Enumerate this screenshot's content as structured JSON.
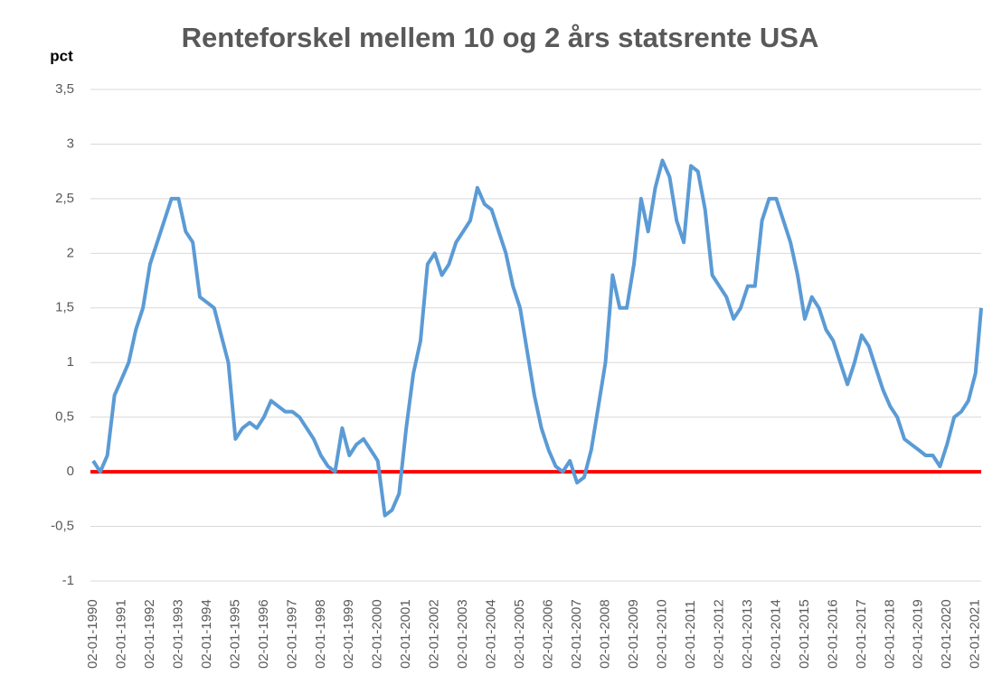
{
  "chart_data": {
    "type": "line",
    "title": "Renteforskel mellem 10 og 2 års statsrente USA",
    "y_label": "pct",
    "x": [
      1990.0,
      1990.25,
      1990.5,
      1990.75,
      1991.0,
      1991.25,
      1991.5,
      1991.75,
      1992.0,
      1992.25,
      1992.5,
      1992.75,
      1993.0,
      1993.25,
      1993.5,
      1993.75,
      1994.0,
      1994.25,
      1994.5,
      1994.75,
      1995.0,
      1995.25,
      1995.5,
      1995.75,
      1996.0,
      1996.25,
      1996.5,
      1996.75,
      1997.0,
      1997.25,
      1997.5,
      1997.75,
      1998.0,
      1998.25,
      1998.5,
      1998.75,
      1999.0,
      1999.25,
      1999.5,
      1999.75,
      2000.0,
      2000.25,
      2000.5,
      2000.75,
      2001.0,
      2001.25,
      2001.5,
      2001.75,
      2002.0,
      2002.25,
      2002.5,
      2002.75,
      2003.0,
      2003.25,
      2003.5,
      2003.75,
      2004.0,
      2004.25,
      2004.5,
      2004.75,
      2005.0,
      2005.25,
      2005.5,
      2005.75,
      2006.0,
      2006.25,
      2006.5,
      2006.75,
      2007.0,
      2007.25,
      2007.5,
      2007.75,
      2008.0,
      2008.25,
      2008.5,
      2008.75,
      2009.0,
      2009.25,
      2009.5,
      2009.75,
      2010.0,
      2010.25,
      2010.5,
      2010.75,
      2011.0,
      2011.25,
      2011.5,
      2011.75,
      2012.0,
      2012.25,
      2012.5,
      2012.75,
      2013.0,
      2013.25,
      2013.5,
      2013.75,
      2014.0,
      2014.25,
      2014.5,
      2014.75,
      2015.0,
      2015.25,
      2015.5,
      2015.75,
      2016.0,
      2016.25,
      2016.5,
      2016.75,
      2017.0,
      2017.25,
      2017.5,
      2017.75,
      2018.0,
      2018.25,
      2018.5,
      2018.75,
      2019.0,
      2019.25,
      2019.5,
      2019.75,
      2020.0,
      2020.25,
      2020.5,
      2020.75,
      2021.0,
      2021.1,
      2021.2
    ],
    "series": [
      {
        "name": "Renteforskel",
        "color": "#5b9bd5",
        "values": [
          0.1,
          0.0,
          0.15,
          0.7,
          0.85,
          1.0,
          1.3,
          1.5,
          1.9,
          2.1,
          2.3,
          2.5,
          2.5,
          2.2,
          2.1,
          1.6,
          1.55,
          1.5,
          1.25,
          1.0,
          0.3,
          0.4,
          0.45,
          0.4,
          0.5,
          0.65,
          0.6,
          0.55,
          0.55,
          0.5,
          0.4,
          0.3,
          0.15,
          0.05,
          0.0,
          0.4,
          0.15,
          0.25,
          0.3,
          0.2,
          0.1,
          -0.4,
          -0.35,
          -0.2,
          0.4,
          0.9,
          1.2,
          1.9,
          2.0,
          1.8,
          1.9,
          2.1,
          2.2,
          2.3,
          2.6,
          2.45,
          2.4,
          2.2,
          2.0,
          1.7,
          1.5,
          1.1,
          0.7,
          0.4,
          0.2,
          0.05,
          0.0,
          0.1,
          -0.1,
          -0.05,
          0.2,
          0.6,
          1.0,
          1.8,
          1.5,
          1.5,
          1.9,
          2.5,
          2.2,
          2.6,
          2.85,
          2.7,
          2.3,
          2.1,
          2.8,
          2.75,
          2.4,
          1.8,
          1.7,
          1.6,
          1.4,
          1.5,
          1.7,
          1.7,
          2.3,
          2.5,
          2.5,
          2.3,
          2.1,
          1.8,
          1.4,
          1.6,
          1.5,
          1.3,
          1.2,
          1.0,
          0.8,
          1.0,
          1.25,
          1.15,
          0.95,
          0.75,
          0.6,
          0.5,
          0.3,
          0.25,
          0.2,
          0.15,
          0.15,
          0.05,
          0.25,
          0.5,
          0.55,
          0.65,
          0.9,
          1.2,
          1.5
        ]
      }
    ],
    "xlim": [
      1990,
      2021.2
    ],
    "xticks": [
      {
        "value": 1990,
        "label": "02-01-1990"
      },
      {
        "value": 1991,
        "label": "02-01-1991"
      },
      {
        "value": 1992,
        "label": "02-01-1992"
      },
      {
        "value": 1993,
        "label": "02-01-1993"
      },
      {
        "value": 1994,
        "label": "02-01-1994"
      },
      {
        "value": 1995,
        "label": "02-01-1995"
      },
      {
        "value": 1996,
        "label": "02-01-1996"
      },
      {
        "value": 1997,
        "label": "02-01-1997"
      },
      {
        "value": 1998,
        "label": "02-01-1998"
      },
      {
        "value": 1999,
        "label": "02-01-1999"
      },
      {
        "value": 2000,
        "label": "02-01-2000"
      },
      {
        "value": 2001,
        "label": "02-01-2001"
      },
      {
        "value": 2002,
        "label": "02-01-2002"
      },
      {
        "value": 2003,
        "label": "02-01-2003"
      },
      {
        "value": 2004,
        "label": "02-01-2004"
      },
      {
        "value": 2005,
        "label": "02-01-2005"
      },
      {
        "value": 2006,
        "label": "02-01-2006"
      },
      {
        "value": 2007,
        "label": "02-01-2007"
      },
      {
        "value": 2008,
        "label": "02-01-2008"
      },
      {
        "value": 2009,
        "label": "02-01-2009"
      },
      {
        "value": 2010,
        "label": "02-01-2010"
      },
      {
        "value": 2011,
        "label": "02-01-2011"
      },
      {
        "value": 2012,
        "label": "02-01-2012"
      },
      {
        "value": 2013,
        "label": "02-01-2013"
      },
      {
        "value": 2014,
        "label": "02-01-2014"
      },
      {
        "value": 2015,
        "label": "02-01-2015"
      },
      {
        "value": 2016,
        "label": "02-01-2016"
      },
      {
        "value": 2017,
        "label": "02-01-2017"
      },
      {
        "value": 2018,
        "label": "02-01-2018"
      },
      {
        "value": 2019,
        "label": "02-01-2019"
      },
      {
        "value": 2020,
        "label": "02-01-2020"
      },
      {
        "value": 2021,
        "label": "02-01-2021"
      }
    ],
    "ylim": [
      -1,
      3.5
    ],
    "yticks": [
      {
        "value": -1,
        "label": "-1"
      },
      {
        "value": -0.5,
        "label": "-0,5"
      },
      0,
      {
        "value": 0.5,
        "label": "0,5"
      },
      1,
      {
        "value": 1.5,
        "label": "1,5"
      },
      2,
      {
        "value": 2.5,
        "label": "2,5"
      },
      3,
      {
        "value": 3.5,
        "label": "3,5"
      }
    ],
    "grid": true,
    "reference_line": {
      "value": 0,
      "color": "#ff0000"
    }
  }
}
